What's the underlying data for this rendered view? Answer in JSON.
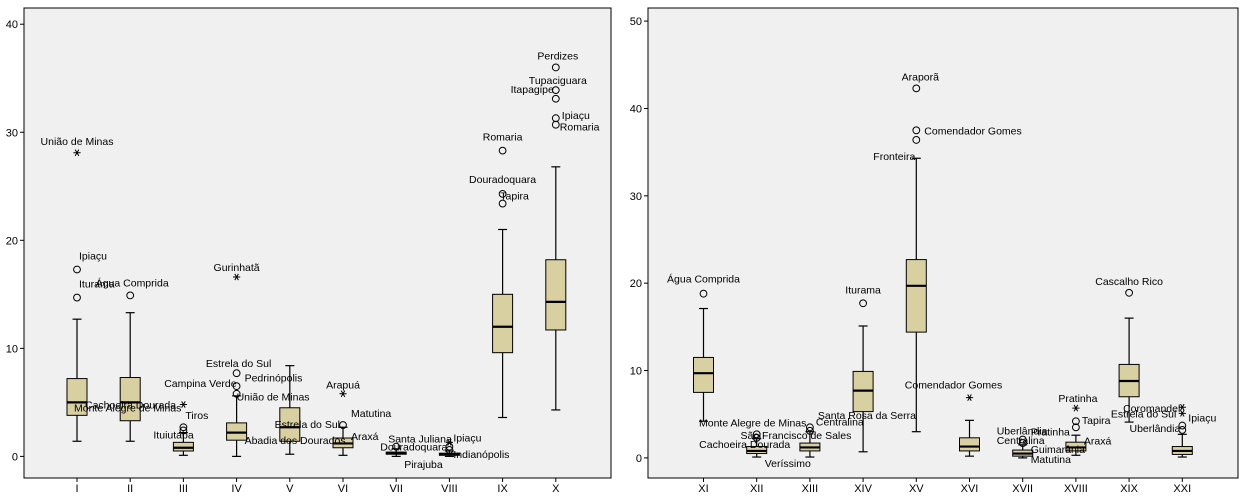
{
  "chart_data": [
    {
      "type": "box",
      "ylim": [
        -2,
        41.5
      ],
      "yticks": [
        0,
        10,
        20,
        30,
        40
      ],
      "grid": false,
      "categories": [
        "I",
        "II",
        "III",
        "IV",
        "V",
        "VI",
        "VII",
        "VIII",
        "IX",
        "X"
      ],
      "boxes": [
        {
          "category": "I",
          "low": 1.4,
          "q1": 3.8,
          "median": 5.0,
          "q3": 7.2,
          "high": 12.7,
          "outliers": [
            {
              "value": 14.7,
              "marker": "circle",
              "label": "Iturama"
            },
            {
              "value": 17.3,
              "marker": "circle",
              "label": "Ipiaçu"
            },
            {
              "value": 28.1,
              "marker": "star",
              "label": "União de Minas"
            }
          ]
        },
        {
          "category": "II",
          "low": 1.4,
          "q1": 3.3,
          "median": 5.0,
          "q3": 7.3,
          "high": 13.3,
          "outliers": [
            {
              "value": 14.9,
              "marker": "circle",
              "label": "Água Comprida"
            }
          ]
        },
        {
          "category": "III",
          "low": 0.1,
          "q1": 0.5,
          "median": 0.8,
          "q3": 1.3,
          "high": 2.2,
          "outliers": [
            {
              "value": 2.4,
              "marker": "circle",
              "label": "Ituiutaba"
            },
            {
              "value": 2.7,
              "marker": "circle",
              "label": "Tiros"
            },
            {
              "value": 4.8,
              "marker": "star",
              "label": "Monte Alegre de Minas"
            }
          ]
        },
        {
          "category": "IV",
          "low": 0.0,
          "q1": 1.5,
          "median": 2.2,
          "q3": 3.1,
          "high": 5.6,
          "outliers": [
            {
              "value": 5.8,
              "marker": "circle",
              "label": "União de Minas"
            },
            {
              "value": 6.5,
              "marker": "circle",
              "label": "Campina Verde"
            },
            {
              "value": 7.7,
              "marker": "circle",
              "label": "Estrela do Sul"
            },
            {
              "value": 16.6,
              "marker": "star",
              "label": "Gurinhatã"
            }
          ]
        },
        {
          "category": "V",
          "low": 0.2,
          "q1": 1.4,
          "median": 2.7,
          "q3": 4.5,
          "high": 8.4,
          "outliers": []
        },
        {
          "category": "VI",
          "low": 0.1,
          "q1": 0.8,
          "median": 1.2,
          "q3": 1.7,
          "high": 2.7,
          "outliers": [
            {
              "value": 2.9,
              "marker": "circle",
              "label": "Estrela do Sul"
            },
            {
              "value": 5.8,
              "marker": "star",
              "label": "Arapuá"
            }
          ]
        },
        {
          "category": "VII",
          "low": 0.0,
          "q1": 0.2,
          "median": 0.3,
          "q3": 0.4,
          "high": 0.7,
          "outliers": [
            {
              "value": 0.9,
              "marker": "circle",
              "label": "Santa Juliana"
            }
          ]
        },
        {
          "category": "VIII",
          "low": 0.0,
          "q1": 0.1,
          "median": 0.2,
          "q3": 0.3,
          "high": 0.5,
          "outliers": [
            {
              "value": 0.6,
              "marker": "circle",
              "label": "Indianópolis"
            },
            {
              "value": 0.9,
              "marker": "circle",
              "label": "Douradoquara"
            },
            {
              "value": 1.3,
              "marker": "star",
              "label": "Ipiaçu"
            }
          ]
        },
        {
          "category": "IX",
          "low": 3.6,
          "q1": 9.6,
          "median": 12.0,
          "q3": 15.0,
          "high": 21.0,
          "outliers": [
            {
              "value": 23.4,
              "marker": "circle",
              "label": "Tapira"
            },
            {
              "value": 24.3,
              "marker": "circle",
              "label": "Douradoquara"
            },
            {
              "value": 28.3,
              "marker": "circle",
              "label": "Romaria"
            }
          ]
        },
        {
          "category": "X",
          "low": 4.3,
          "q1": 11.7,
          "median": 14.3,
          "q3": 18.2,
          "high": 26.8,
          "outliers": [
            {
              "value": 30.7,
              "marker": "circle",
              "label": "Romaria"
            },
            {
              "value": 31.3,
              "marker": "circle",
              "label": "Ipiaçu"
            },
            {
              "value": 33.1,
              "marker": "circle",
              "label": "Itapagipe"
            },
            {
              "value": 33.9,
              "marker": "circle",
              "label": "Tupaciguara"
            },
            {
              "value": 36.0,
              "marker": "circle",
              "label": "Perdizes"
            }
          ]
        }
      ],
      "extra_labels": [
        {
          "text": "Cachoeira Dourada",
          "category": "I",
          "value": 4.8
        },
        {
          "text": "Abadia dos Dourados",
          "category": "IV",
          "value": 1.5
        },
        {
          "text": "Pedrinópolis",
          "category": "IV",
          "value": 7.3
        },
        {
          "text": "Matutina",
          "category": "VI",
          "value": 4.0
        },
        {
          "text": "Araxá",
          "category": "VI",
          "value": 1.9
        },
        {
          "text": "Pirajuba",
          "category": "VII",
          "value": -0.7
        }
      ]
    },
    {
      "type": "box",
      "ylim": [
        -2.3,
        51.5
      ],
      "yticks": [
        0,
        10,
        20,
        30,
        40,
        50
      ],
      "grid": false,
      "categories": [
        "XI",
        "XII",
        "XIII",
        "XIV",
        "XV",
        "XVI",
        "XVII",
        "XVIII",
        "XIX",
        "XXI"
      ],
      "boxes": [
        {
          "category": "XI",
          "low": 4.2,
          "q1": 7.5,
          "median": 9.7,
          "q3": 11.5,
          "high": 17.1,
          "outliers": [
            {
              "value": 18.8,
              "marker": "circle",
              "label": "Água Comprida"
            }
          ]
        },
        {
          "category": "XII",
          "low": 0.1,
          "q1": 0.5,
          "median": 0.8,
          "q3": 1.3,
          "high": 2.2,
          "outliers": [
            {
              "value": 2.3,
              "marker": "circle",
              "label": "Cachoeira Dourada"
            },
            {
              "value": 2.7,
              "marker": "circle",
              "label": "Monte Alegre de Minas"
            }
          ]
        },
        {
          "category": "XIII",
          "low": 0.1,
          "q1": 0.8,
          "median": 1.2,
          "q3": 1.7,
          "high": 3.0,
          "outliers": [
            {
              "value": 3.1,
              "marker": "circle",
              "label": "São Francisco de Sales"
            },
            {
              "value": 3.5,
              "marker": "circle",
              "label": "Centralina"
            }
          ]
        },
        {
          "category": "XIV",
          "low": 0.7,
          "q1": 5.3,
          "median": 7.7,
          "q3": 9.9,
          "high": 15.1,
          "outliers": [
            {
              "value": 17.7,
              "marker": "circle",
              "label": "Iturama"
            }
          ]
        },
        {
          "category": "XV",
          "low": 3.0,
          "q1": 14.4,
          "median": 19.7,
          "q3": 22.7,
          "high": 34.3,
          "outliers": [
            {
              "value": 36.4,
              "marker": "circle",
              "label": "Fronteira"
            },
            {
              "value": 37.5,
              "marker": "circle",
              "label": "Comendador Gomes"
            },
            {
              "value": 42.3,
              "marker": "circle",
              "label": "Araporã"
            }
          ]
        },
        {
          "category": "XVI",
          "low": 0.2,
          "q1": 0.8,
          "median": 1.3,
          "q3": 2.3,
          "high": 4.3,
          "outliers": [
            {
              "value": 6.9,
              "marker": "star",
              "label": "Comendador Gomes"
            }
          ]
        },
        {
          "category": "XVII",
          "low": 0.0,
          "q1": 0.2,
          "median": 0.5,
          "q3": 0.9,
          "high": 1.5,
          "outliers": [
            {
              "value": 1.7,
              "marker": "circle",
              "label": "Centralina"
            },
            {
              "value": 2.1,
              "marker": "circle",
              "label": "Uberlândia"
            }
          ]
        },
        {
          "category": "XVIII",
          "low": 0.3,
          "q1": 0.8,
          "median": 1.2,
          "q3": 1.8,
          "high": 2.6,
          "outliers": [
            {
              "value": 3.5,
              "marker": "circle",
              "label": "Pratinha"
            },
            {
              "value": 4.2,
              "marker": "circle",
              "label": "Tapira"
            },
            {
              "value": 5.7,
              "marker": "star",
              "label": "Pratinha"
            }
          ]
        },
        {
          "category": "XIX",
          "low": 4.1,
          "q1": 7.0,
          "median": 8.8,
          "q3": 10.7,
          "high": 16.0,
          "outliers": [
            {
              "value": 18.9,
              "marker": "circle",
              "label": "Cascalho Rico"
            }
          ]
        },
        {
          "category": "XXI",
          "low": 0.1,
          "q1": 0.4,
          "median": 0.8,
          "q3": 1.3,
          "high": 2.7,
          "outliers": [
            {
              "value": 3.2,
              "marker": "circle",
              "label": "Uberlândia"
            },
            {
              "value": 3.7,
              "marker": "circle",
              "label": "Estrela do Sul"
            },
            {
              "value": 5.1,
              "marker": "star",
              "label": "Ipiaçu"
            },
            {
              "value": 5.8,
              "marker": "star",
              "label": "Coromandel"
            }
          ]
        }
      ],
      "extra_labels": [
        {
          "text": "Veríssimo",
          "category": "XII",
          "value": -0.6
        },
        {
          "text": "Santa Rosa da Serra",
          "category": "XIII",
          "value": 4.9
        },
        {
          "text": "Guimarânia",
          "category": "XVII",
          "value": 1.0
        },
        {
          "text": "Matutina",
          "category": "XVII",
          "value": -0.1
        },
        {
          "text": "Araxá",
          "category": "XVIII",
          "value": 2.0
        }
      ]
    }
  ]
}
